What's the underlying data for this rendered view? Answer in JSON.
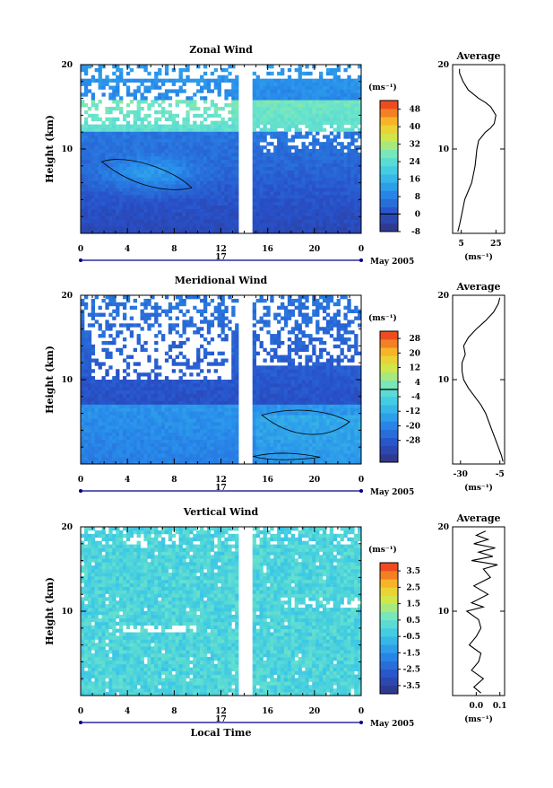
{
  "chart_data": [
    {
      "type": "heatmap",
      "title": "Zonal Wind",
      "ylabel": "Height (km)",
      "ylim": [
        0,
        20
      ],
      "yticks": [
        "10",
        "20"
      ],
      "xlim": [
        0,
        24
      ],
      "xticks": [
        "0",
        "4",
        "8",
        "12",
        "16",
        "20",
        "0"
      ],
      "date_day": "17",
      "date_label": "May 2005",
      "colorbar": {
        "unit": "(ms⁻¹)",
        "min": -8,
        "max": 52,
        "tick_values": [
          48,
          40,
          32,
          24,
          16,
          8,
          0,
          -8
        ],
        "tick_labels": [
          "48",
          "40",
          "32",
          "24",
          "16",
          "8",
          "0",
          "-8"
        ]
      },
      "data_gap_hours": [
        13.5,
        14.7
      ],
      "average_profile": {
        "title": "Average",
        "xlabel": "(ms⁻¹)",
        "xlim": [
          0,
          30
        ],
        "xticks": [
          5,
          25
        ],
        "xtick_labels": [
          "5",
          "25"
        ],
        "yticks": [
          "10",
          "20"
        ],
        "height": [
          0.2,
          1,
          2,
          3,
          4,
          5,
          6,
          7,
          8,
          9,
          10,
          11,
          12,
          12.5,
          13,
          14,
          15,
          15.5,
          16,
          17,
          18,
          19,
          19.5
        ],
        "value": [
          3,
          4,
          5,
          6,
          7,
          9,
          11,
          12,
          13,
          13.5,
          14,
          15,
          19,
          22,
          24,
          25,
          22,
          19,
          15,
          9,
          6,
          4,
          4
        ]
      }
    },
    {
      "type": "heatmap",
      "title": "Meridional Wind",
      "ylabel": "Height (km)",
      "ylim": [
        0,
        20
      ],
      "yticks": [
        "10",
        "20"
      ],
      "xlim": [
        0,
        24
      ],
      "xticks": [
        "0",
        "4",
        "8",
        "12",
        "16",
        "20",
        "0"
      ],
      "date_day": "17",
      "date_label": "May 2005",
      "colorbar": {
        "unit": "(ms⁻¹)",
        "min": -40,
        "max": 32,
        "tick_values": [
          28,
          20,
          12,
          4,
          -4,
          -12,
          -20,
          -28
        ],
        "tick_labels": [
          "28",
          "20",
          "12",
          "4",
          "-4",
          "-12",
          "-20",
          "-28"
        ]
      },
      "data_gap_hours": [
        13.5,
        14.7
      ],
      "average_profile": {
        "title": "Average",
        "xlabel": "(ms⁻¹)",
        "xlim": [
          -35,
          -2
        ],
        "xticks": [
          -30,
          -5
        ],
        "xtick_labels": [
          "-30",
          "-5"
        ],
        "yticks": [
          "10",
          "20"
        ],
        "height": [
          0.3,
          1,
          2,
          3,
          4,
          5,
          6,
          7,
          8,
          9,
          10,
          11,
          12,
          13,
          14,
          15,
          16,
          17,
          18,
          19,
          19.7
        ],
        "value": [
          -3,
          -4,
          -6,
          -8,
          -10,
          -12,
          -14,
          -17,
          -21,
          -25,
          -28,
          -29,
          -29,
          -27,
          -28,
          -25,
          -20,
          -14,
          -9,
          -6,
          -5
        ]
      }
    },
    {
      "type": "heatmap",
      "title": "Vertical Wind",
      "xlabel": "Local Time",
      "ylabel": "Height (km)",
      "ylim": [
        0,
        20
      ],
      "yticks": [
        "10",
        "20"
      ],
      "xlim": [
        0,
        24
      ],
      "xticks": [
        "0",
        "4",
        "8",
        "12",
        "16",
        "20",
        "0"
      ],
      "date_day": "17",
      "date_label": "May 2005",
      "colorbar": {
        "unit": "(ms⁻¹)",
        "min": -4,
        "max": 4,
        "tick_values": [
          3.5,
          2.5,
          1.5,
          0.5,
          -0.5,
          -1.5,
          -2.5,
          -3.5
        ],
        "tick_labels": [
          "3.5",
          "2.5",
          "1.5",
          "0.5",
          "-0.5",
          "-1.5",
          "-2.5",
          "-3.5"
        ]
      },
      "data_gap_hours": [
        13.5,
        14.7
      ],
      "average_profile": {
        "title": "Average",
        "xlabel": "(ms⁻¹)",
        "xlim": [
          -0.1,
          0.12
        ],
        "xticks": [
          0.0,
          0.1
        ],
        "xtick_labels": [
          "0.0",
          "0.1"
        ],
        "yticks": [
          "10",
          "20"
        ],
        "height": [
          0.3,
          1,
          2,
          3,
          4,
          5,
          6,
          7,
          8,
          9,
          10,
          10.5,
          11,
          12,
          13,
          14,
          15,
          15.5,
          16,
          16.5,
          17,
          17.5,
          18,
          18.5,
          19,
          19.5
        ],
        "value": [
          0.02,
          -0.01,
          0.03,
          -0.02,
          0.01,
          0.02,
          -0.03,
          0.0,
          0.02,
          0.01,
          -0.04,
          0.03,
          -0.02,
          0.05,
          -0.01,
          0.06,
          0.03,
          0.09,
          -0.02,
          0.07,
          0.01,
          0.08,
          -0.01,
          0.05,
          0.0,
          0.04
        ]
      }
    }
  ]
}
